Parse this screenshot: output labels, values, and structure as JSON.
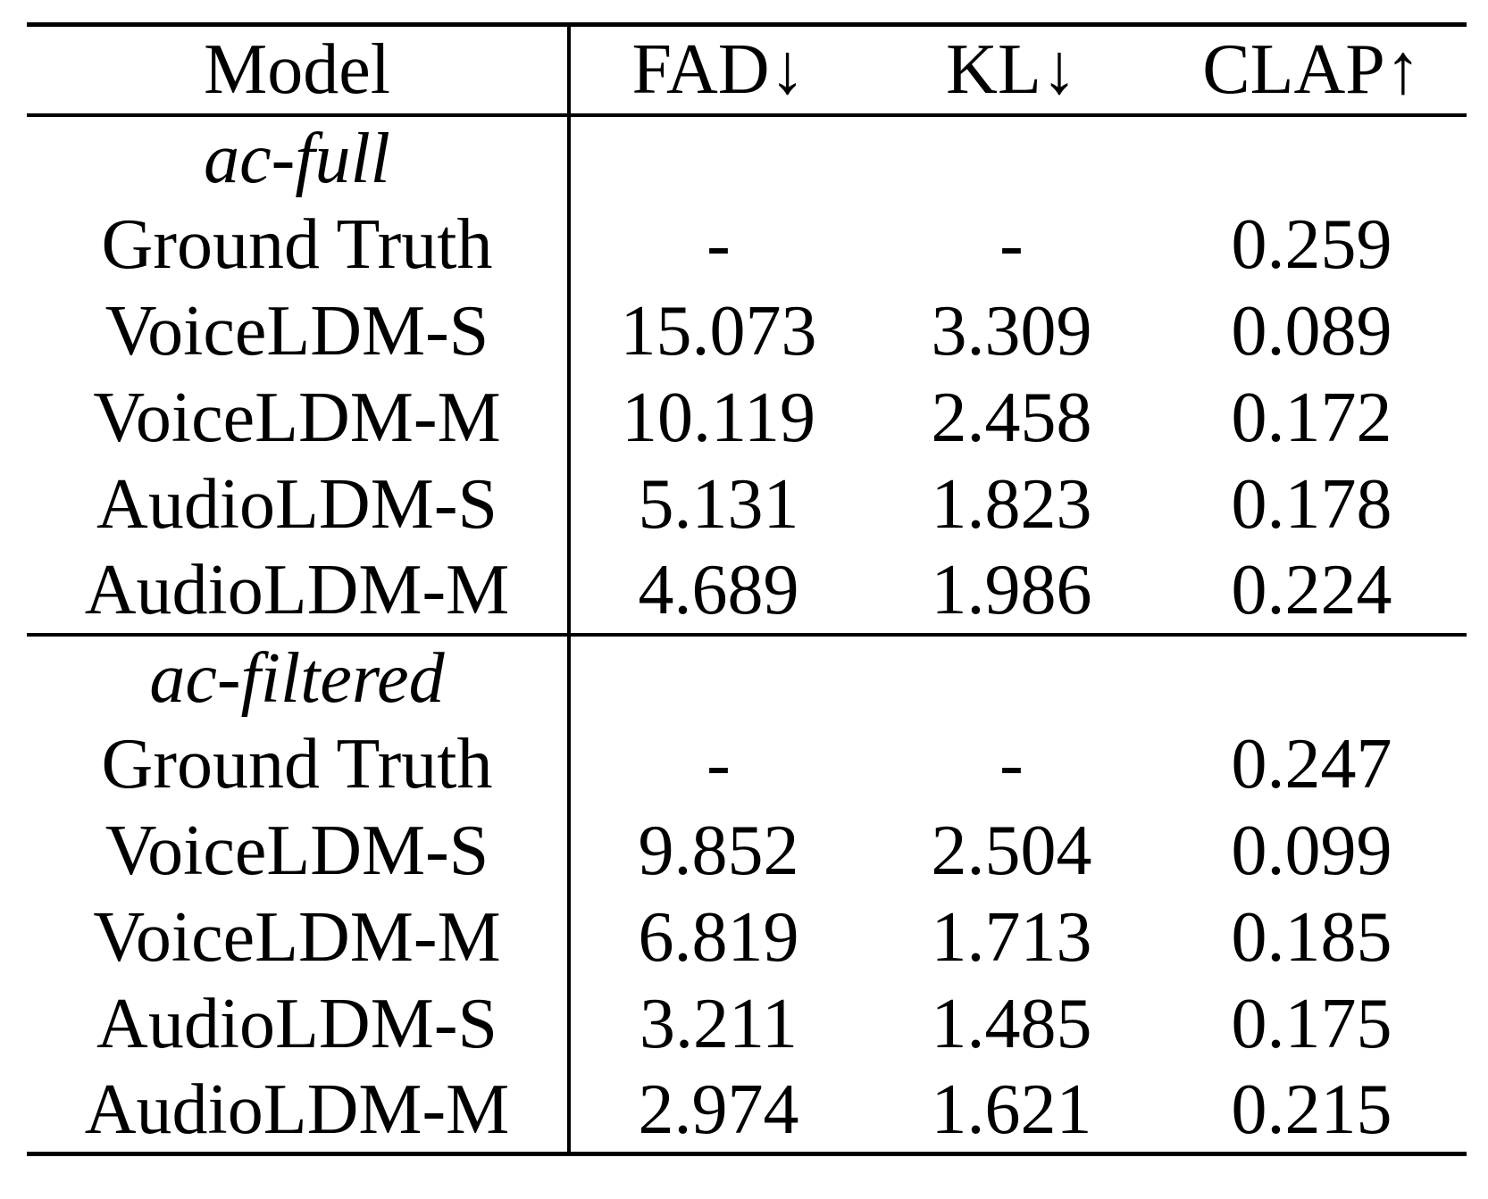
{
  "table": {
    "columns": [
      "Model",
      "FAD↓",
      "KL↓",
      "CLAP↑"
    ],
    "sections": [
      {
        "label": "ac-full",
        "rows": [
          {
            "model": "Ground Truth",
            "fad": "-",
            "kl": "-",
            "clap": "0.259"
          },
          {
            "model": "VoiceLDM-S",
            "fad": "15.073",
            "kl": "3.309",
            "clap": "0.089"
          },
          {
            "model": "VoiceLDM-M",
            "fad": "10.119",
            "kl": "2.458",
            "clap": "0.172"
          },
          {
            "model": "AudioLDM-S",
            "fad": "5.131",
            "kl": "1.823",
            "clap": "0.178"
          },
          {
            "model": "AudioLDM-M",
            "fad": "4.689",
            "kl": "1.986",
            "clap": "0.224"
          }
        ]
      },
      {
        "label": "ac-filtered",
        "rows": [
          {
            "model": "Ground Truth",
            "fad": "-",
            "kl": "-",
            "clap": "0.247"
          },
          {
            "model": "VoiceLDM-S",
            "fad": "9.852",
            "kl": "2.504",
            "clap": "0.099"
          },
          {
            "model": "VoiceLDM-M",
            "fad": "6.819",
            "kl": "1.713",
            "clap": "0.185"
          },
          {
            "model": "AudioLDM-S",
            "fad": "3.211",
            "kl": "1.485",
            "clap": "0.175"
          },
          {
            "model": "AudioLDM-M",
            "fad": "2.974",
            "kl": "1.621",
            "clap": "0.215"
          }
        ]
      }
    ]
  }
}
